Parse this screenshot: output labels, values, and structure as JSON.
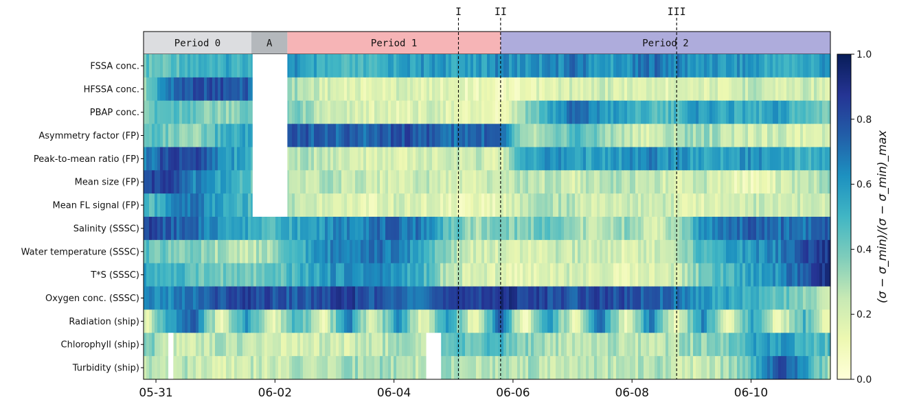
{
  "chart_data": {
    "type": "heatmap",
    "rows": [
      "FSSA conc.",
      "HFSSA conc.",
      "PBAP conc.",
      "Asymmetry factor (FP)",
      "Peak-to-mean ratio (FP)",
      "Mean size (FP)",
      "Mean FL signal (FP)",
      "Salinity (SSSC)",
      "Water temperature (SSSC)",
      "T*S (SSSC)",
      "Oxygen conc. (SSSC)",
      "Radiation (ship)",
      "Chlorophyll (ship)",
      "Turbidity (ship)"
    ],
    "x_range": [
      "2023-05-30T19:00",
      "2023-06-11T08:00"
    ],
    "xticks": [
      {
        "date": "2023-05-31T00:00",
        "label": "05-31"
      },
      {
        "date": "2023-06-02T00:00",
        "label": "06-02"
      },
      {
        "date": "2023-06-04T00:00",
        "label": "06-04"
      },
      {
        "date": "2023-06-06T00:00",
        "label": "06-06"
      },
      {
        "date": "2023-06-08T00:00",
        "label": "06-08"
      },
      {
        "date": "2023-06-10T00:00",
        "label": "06-10"
      }
    ],
    "periods": [
      {
        "label": "Period 0",
        "start": "2023-05-30T19:00",
        "end": "2023-06-01T14:30",
        "color": "#dcdde0"
      },
      {
        "label": "A",
        "start": "2023-06-01T14:30",
        "end": "2023-06-02T05:00",
        "color": "#b4b8bc"
      },
      {
        "label": "Period 1",
        "start": "2023-06-02T05:00",
        "end": "2023-06-05T19:00",
        "color": "#f6b4b6"
      },
      {
        "label": "Period 2",
        "start": "2023-06-05T19:00",
        "end": "2023-06-11T08:00",
        "color": "#aeacdc"
      }
    ],
    "markers": [
      {
        "label": "I",
        "date": "2023-06-05T02:00"
      },
      {
        "label": "II",
        "date": "2023-06-05T19:00"
      },
      {
        "label": "III",
        "date": "2023-06-08T18:00"
      }
    ],
    "missing": [
      {
        "rows": [
          0,
          6
        ],
        "start": "2023-06-01T15:00",
        "end": "2023-06-02T05:00"
      },
      {
        "rows": [
          12,
          13
        ],
        "start": "2023-06-04T13:00",
        "end": "2023-06-04T19:00"
      },
      {
        "rows": [
          12,
          13
        ],
        "start": "2023-05-31T05:00",
        "end": "2023-05-31T07:00"
      }
    ],
    "intensity": [
      [
        0.45,
        0.42,
        0.5,
        0.55,
        0.48,
        0.5,
        0.62,
        0.55,
        0.5,
        0.52,
        0.55,
        0.6,
        0.58,
        0.55,
        0.65,
        0.6,
        0.62,
        0.7,
        0.58,
        0.6,
        0.72,
        0.65,
        0.6,
        0.58,
        0.62,
        0.5,
        0.55,
        0.6
      ],
      [
        0.35,
        0.72,
        0.78,
        0.8,
        0.75,
        0.5,
        0.3,
        0.2,
        0.18,
        0.15,
        0.2,
        0.18,
        0.15,
        0.12,
        0.1,
        0.15,
        0.18,
        0.2,
        0.22,
        0.18,
        0.2,
        0.15,
        0.18,
        0.2,
        0.25,
        0.18,
        0.22,
        0.2
      ],
      [
        0.42,
        0.45,
        0.4,
        0.35,
        0.4,
        0.45,
        0.38,
        0.22,
        0.2,
        0.18,
        0.15,
        0.2,
        0.18,
        0.15,
        0.12,
        0.35,
        0.55,
        0.72,
        0.6,
        0.55,
        0.45,
        0.5,
        0.6,
        0.55,
        0.5,
        0.58,
        0.45,
        0.4
      ],
      [
        0.45,
        0.4,
        0.35,
        0.5,
        0.55,
        0.7,
        0.78,
        0.72,
        0.75,
        0.72,
        0.8,
        0.78,
        0.7,
        0.75,
        0.72,
        0.25,
        0.3,
        0.5,
        0.35,
        0.25,
        0.2,
        0.3,
        0.35,
        0.25,
        0.2,
        0.22,
        0.18,
        0.25
      ],
      [
        0.65,
        0.85,
        0.82,
        0.6,
        0.55,
        0.35,
        0.3,
        0.25,
        0.22,
        0.2,
        0.18,
        0.22,
        0.2,
        0.25,
        0.18,
        0.55,
        0.62,
        0.58,
        0.55,
        0.6,
        0.65,
        0.6,
        0.55,
        0.58,
        0.62,
        0.55,
        0.5,
        0.6
      ],
      [
        0.85,
        0.8,
        0.65,
        0.55,
        0.45,
        0.3,
        0.25,
        0.28,
        0.25,
        0.22,
        0.2,
        0.25,
        0.22,
        0.2,
        0.25,
        0.3,
        0.25,
        0.2,
        0.3,
        0.28,
        0.25,
        0.2,
        0.25,
        0.15,
        0.1,
        0.2,
        0.25,
        0.3
      ],
      [
        0.45,
        0.62,
        0.68,
        0.55,
        0.5,
        0.3,
        0.25,
        0.2,
        0.18,
        0.15,
        0.2,
        0.18,
        0.15,
        0.12,
        0.15,
        0.28,
        0.3,
        0.25,
        0.2,
        0.22,
        0.25,
        0.2,
        0.18,
        0.22,
        0.25,
        0.2,
        0.22,
        0.2
      ],
      [
        0.85,
        0.75,
        0.7,
        0.62,
        0.55,
        0.5,
        0.55,
        0.6,
        0.65,
        0.7,
        0.72,
        0.68,
        0.45,
        0.3,
        0.4,
        0.35,
        0.45,
        0.3,
        0.25,
        0.35,
        0.2,
        0.3,
        0.62,
        0.7,
        0.75,
        0.72,
        0.7,
        0.78
      ],
      [
        0.45,
        0.4,
        0.35,
        0.3,
        0.25,
        0.3,
        0.5,
        0.62,
        0.7,
        0.72,
        0.65,
        0.55,
        0.3,
        0.22,
        0.2,
        0.18,
        0.22,
        0.25,
        0.2,
        0.18,
        0.22,
        0.25,
        0.5,
        0.55,
        0.6,
        0.65,
        0.8,
        0.88
      ],
      [
        0.55,
        0.5,
        0.45,
        0.4,
        0.38,
        0.4,
        0.5,
        0.58,
        0.62,
        0.65,
        0.6,
        0.5,
        0.25,
        0.2,
        0.18,
        0.15,
        0.2,
        0.22,
        0.18,
        0.15,
        0.2,
        0.22,
        0.4,
        0.5,
        0.55,
        0.62,
        0.75,
        0.9
      ],
      [
        0.6,
        0.65,
        0.7,
        0.78,
        0.82,
        0.8,
        0.75,
        0.8,
        0.85,
        0.78,
        0.72,
        0.75,
        0.8,
        0.85,
        0.88,
        0.85,
        0.8,
        0.78,
        0.82,
        0.8,
        0.75,
        0.7,
        0.6,
        0.55,
        0.5,
        0.45,
        0.35,
        0.2
      ],
      [
        0.15,
        0.55,
        0.75,
        0.1,
        0.6,
        0.1,
        0.55,
        0.1,
        0.7,
        0.12,
        0.65,
        0.1,
        0.6,
        0.1,
        0.75,
        0.1,
        0.6,
        0.1,
        0.72,
        0.1,
        0.7,
        0.1,
        0.65,
        0.1,
        0.55,
        0.1,
        0.5,
        0.12
      ],
      [
        0.4,
        0.25,
        0.22,
        0.3,
        0.25,
        0.2,
        0.18,
        0.22,
        0.2,
        0.25,
        0.3,
        0.28,
        0.45,
        0.4,
        0.5,
        0.35,
        0.3,
        0.25,
        0.3,
        0.28,
        0.25,
        0.3,
        0.35,
        0.4,
        0.55,
        0.6,
        0.5,
        0.45
      ],
      [
        0.25,
        0.3,
        0.25,
        0.2,
        0.25,
        0.22,
        0.28,
        0.25,
        0.3,
        0.35,
        0.3,
        0.25,
        0.3,
        0.28,
        0.25,
        0.3,
        0.25,
        0.22,
        0.28,
        0.25,
        0.3,
        0.25,
        0.2,
        0.3,
        0.45,
        0.8,
        0.6,
        0.3
      ]
    ],
    "colorbar": {
      "label": "(σ − σ_min)/(σ − σ_min)_max",
      "ticks": [
        "0.0",
        "0.2",
        "0.4",
        "0.6",
        "0.8",
        "1.0"
      ],
      "range": [
        0,
        1
      ],
      "colormap": [
        "#ffffd9",
        "#edf8b1",
        "#c7e9b4",
        "#7fcdbb",
        "#41b6c4",
        "#1d91c0",
        "#225ea8",
        "#253494",
        "#081d58"
      ]
    }
  }
}
